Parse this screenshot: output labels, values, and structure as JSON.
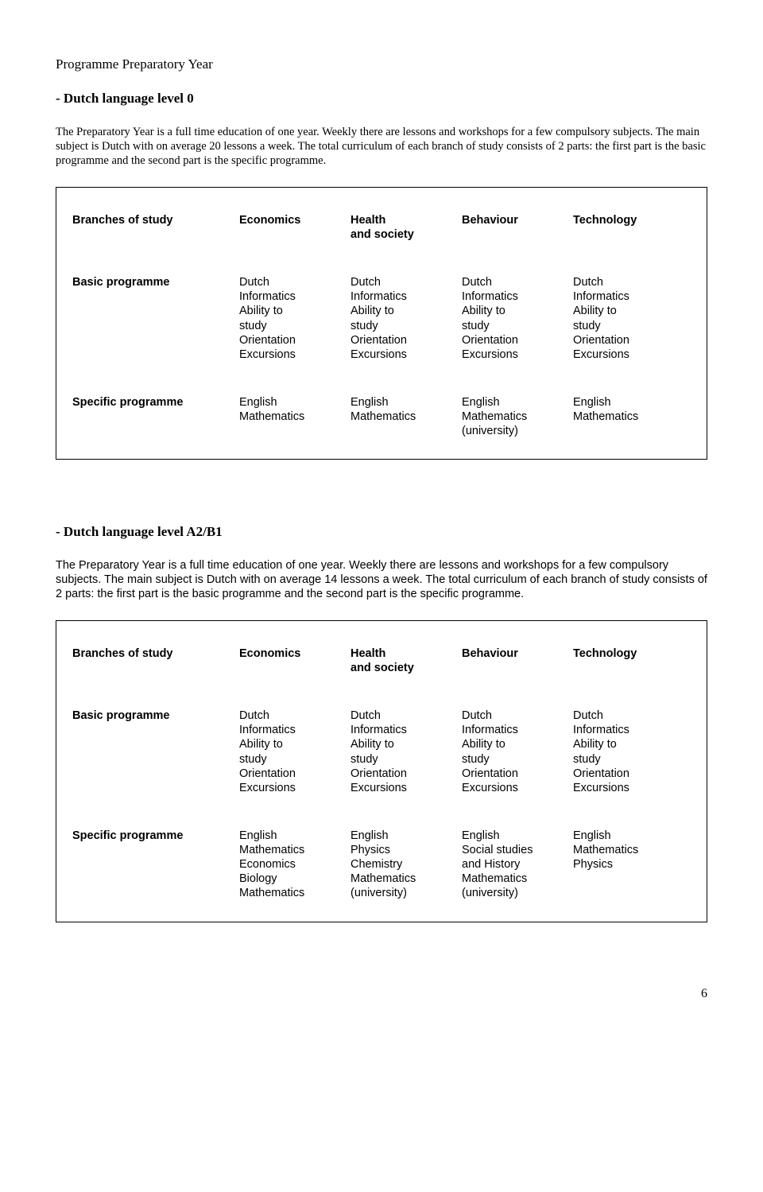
{
  "page_title": "Programme Preparatory Year",
  "page_number": "6",
  "sections": [
    {
      "heading": "- Dutch language level 0",
      "para": "The Preparatory Year is a full time education of one year. Weekly there are lessons and workshops for a few compulsory subjects. The main subject is Dutch with on average 20 lessons a week. The total curriculum of each branch of study consists of 2 parts: the first part is the basic programme and the second part is the specific programme.",
      "table": {
        "row_labels": [
          "Branches of study",
          "Basic programme",
          "Specific programme"
        ],
        "columns": [
          {
            "header": [
              "Economics"
            ],
            "basic": [
              "Dutch",
              "Informatics",
              "Ability to",
              "study",
              "Orientation",
              "Excursions"
            ],
            "specific": [
              "English",
              "Mathematics"
            ]
          },
          {
            "header": [
              "Health",
              "and society"
            ],
            "basic": [
              "Dutch",
              "Informatics",
              "Ability to",
              "study",
              "Orientation",
              "Excursions"
            ],
            "specific": [
              "English",
              "Mathematics"
            ]
          },
          {
            "header": [
              "Behaviour"
            ],
            "basic": [
              "Dutch",
              "Informatics",
              "Ability to",
              "study",
              "Orientation",
              "Excursions"
            ],
            "specific": [
              "English",
              "Mathematics",
              "(university)"
            ]
          },
          {
            "header": [
              "Technology"
            ],
            "basic": [
              "Dutch",
              "Informatics",
              "Ability to",
              "study",
              "Orientation",
              "Excursions"
            ],
            "specific": [
              "English",
              "Mathematics"
            ]
          }
        ]
      }
    },
    {
      "heading": "- Dutch language level A2/B1",
      "para": "The Preparatory Year is a full time education of one year. Weekly there are lessons and workshops for a few compulsory subjects. The main subject is Dutch with on average 14 lessons a week. The total curriculum of each branch of study consists of 2 parts: the first part is the basic programme and the second part is the specific programme.",
      "table": {
        "row_labels": [
          "Branches of study",
          "Basic programme",
          "Specific programme"
        ],
        "columns": [
          {
            "header": [
              "Economics"
            ],
            "basic": [
              "Dutch",
              "Informatics",
              "Ability to",
              "study",
              "Orientation",
              "Excursions"
            ],
            "specific": [
              "English",
              "Mathematics",
              "Economics",
              "Biology",
              "Mathematics"
            ]
          },
          {
            "header": [
              "Health",
              "and society"
            ],
            "basic": [
              "Dutch",
              "Informatics",
              "Ability to",
              "study",
              "Orientation",
              "Excursions"
            ],
            "specific": [
              "English",
              "Physics",
              "Chemistry",
              "Mathematics",
              "(university)"
            ]
          },
          {
            "header": [
              "Behaviour"
            ],
            "basic": [
              "Dutch",
              "Informatics",
              "Ability to",
              "study",
              "Orientation",
              "Excursions"
            ],
            "specific": [
              "English",
              "Social studies",
              "and History",
              "Mathematics",
              "(university)"
            ]
          },
          {
            "header": [
              "Technology"
            ],
            "basic": [
              "Dutch",
              "Informatics",
              "Ability to",
              "study",
              "Orientation",
              "Excursions"
            ],
            "specific": [
              "English",
              "Mathematics",
              "Physics"
            ]
          }
        ]
      }
    }
  ]
}
